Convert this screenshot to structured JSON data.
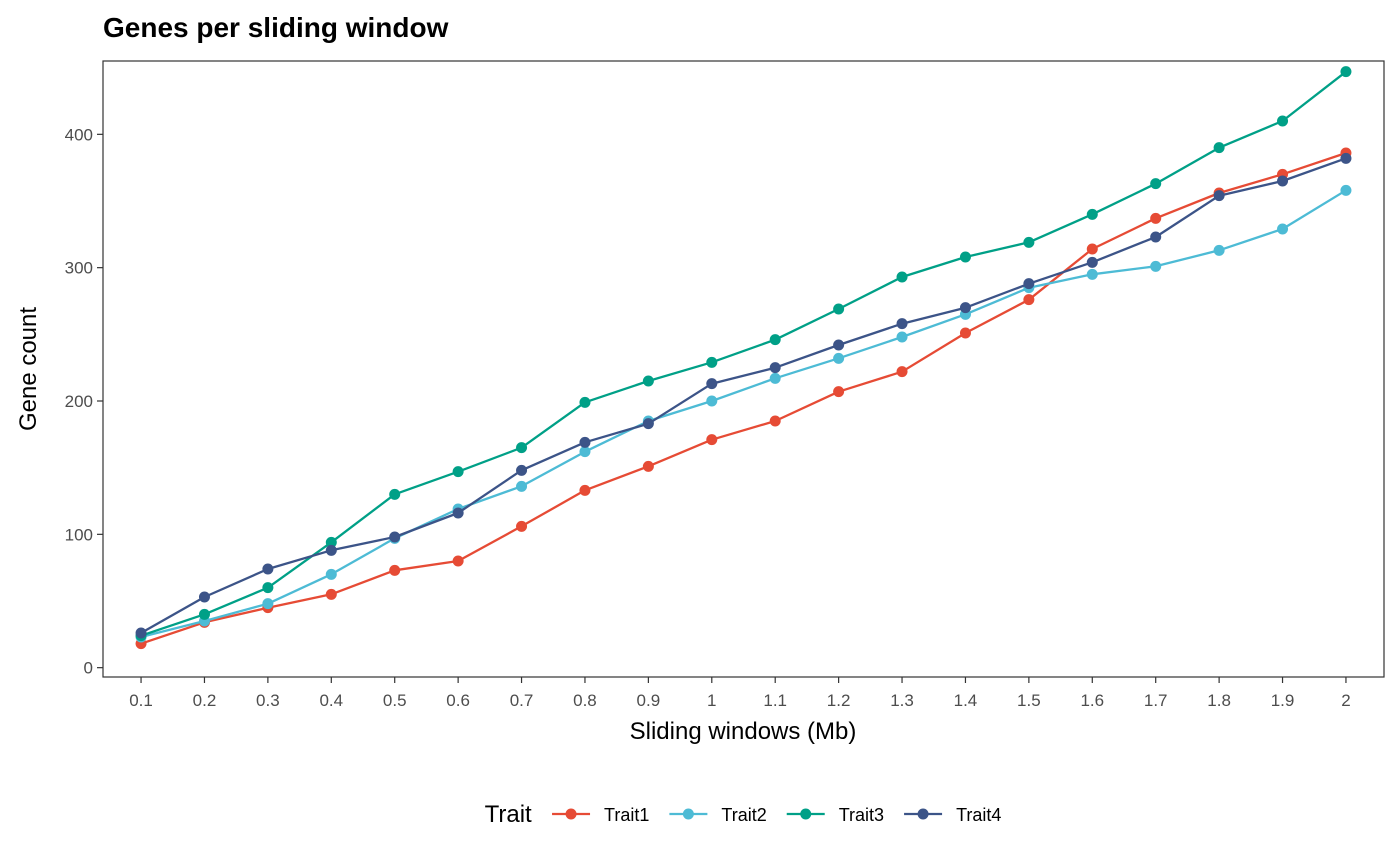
{
  "chart_data": {
    "type": "line",
    "title": "Genes per sliding window",
    "xlabel": "Sliding windows (Mb)",
    "ylabel": "Gene count",
    "x": [
      0.1,
      0.2,
      0.3,
      0.4,
      0.5,
      0.6,
      0.7,
      0.8,
      0.9,
      1,
      1.1,
      1.2,
      1.3,
      1.4,
      1.5,
      1.6,
      1.7,
      1.8,
      1.9,
      2
    ],
    "x_tick_labels": [
      "0.1",
      "0.2",
      "0.3",
      "0.4",
      "0.5",
      "0.6",
      "0.7",
      "0.8",
      "0.9",
      "1",
      "1.1",
      "1.2",
      "1.3",
      "1.4",
      "1.5",
      "1.6",
      "1.7",
      "1.8",
      "1.9",
      "2"
    ],
    "y_ticks": [
      0,
      100,
      200,
      300,
      400
    ],
    "ylim": [
      -7,
      455
    ],
    "grid": false,
    "legend": {
      "title": "Trait",
      "position": "bottom"
    },
    "series": [
      {
        "name": "Trait1",
        "color": "#E64B35",
        "values": [
          18,
          34,
          45,
          55,
          73,
          80,
          106,
          133,
          151,
          171,
          185,
          207,
          222,
          251,
          276,
          314,
          337,
          356,
          370,
          386
        ]
      },
      {
        "name": "Trait2",
        "color": "#4DBBD5",
        "values": [
          23,
          35,
          48,
          70,
          97,
          119,
          136,
          162,
          185,
          200,
          217,
          232,
          248,
          265,
          285,
          295,
          301,
          313,
          329,
          358
        ]
      },
      {
        "name": "Trait3",
        "color": "#00A087",
        "values": [
          24,
          40,
          60,
          94,
          130,
          147,
          165,
          199,
          215,
          229,
          246,
          269,
          293,
          308,
          319,
          340,
          363,
          390,
          410,
          447
        ]
      },
      {
        "name": "Trait4",
        "color": "#3C5488",
        "values": [
          26,
          53,
          74,
          88,
          98,
          116,
          148,
          169,
          183,
          213,
          225,
          242,
          258,
          270,
          288,
          304,
          323,
          354,
          365,
          382
        ]
      }
    ]
  }
}
